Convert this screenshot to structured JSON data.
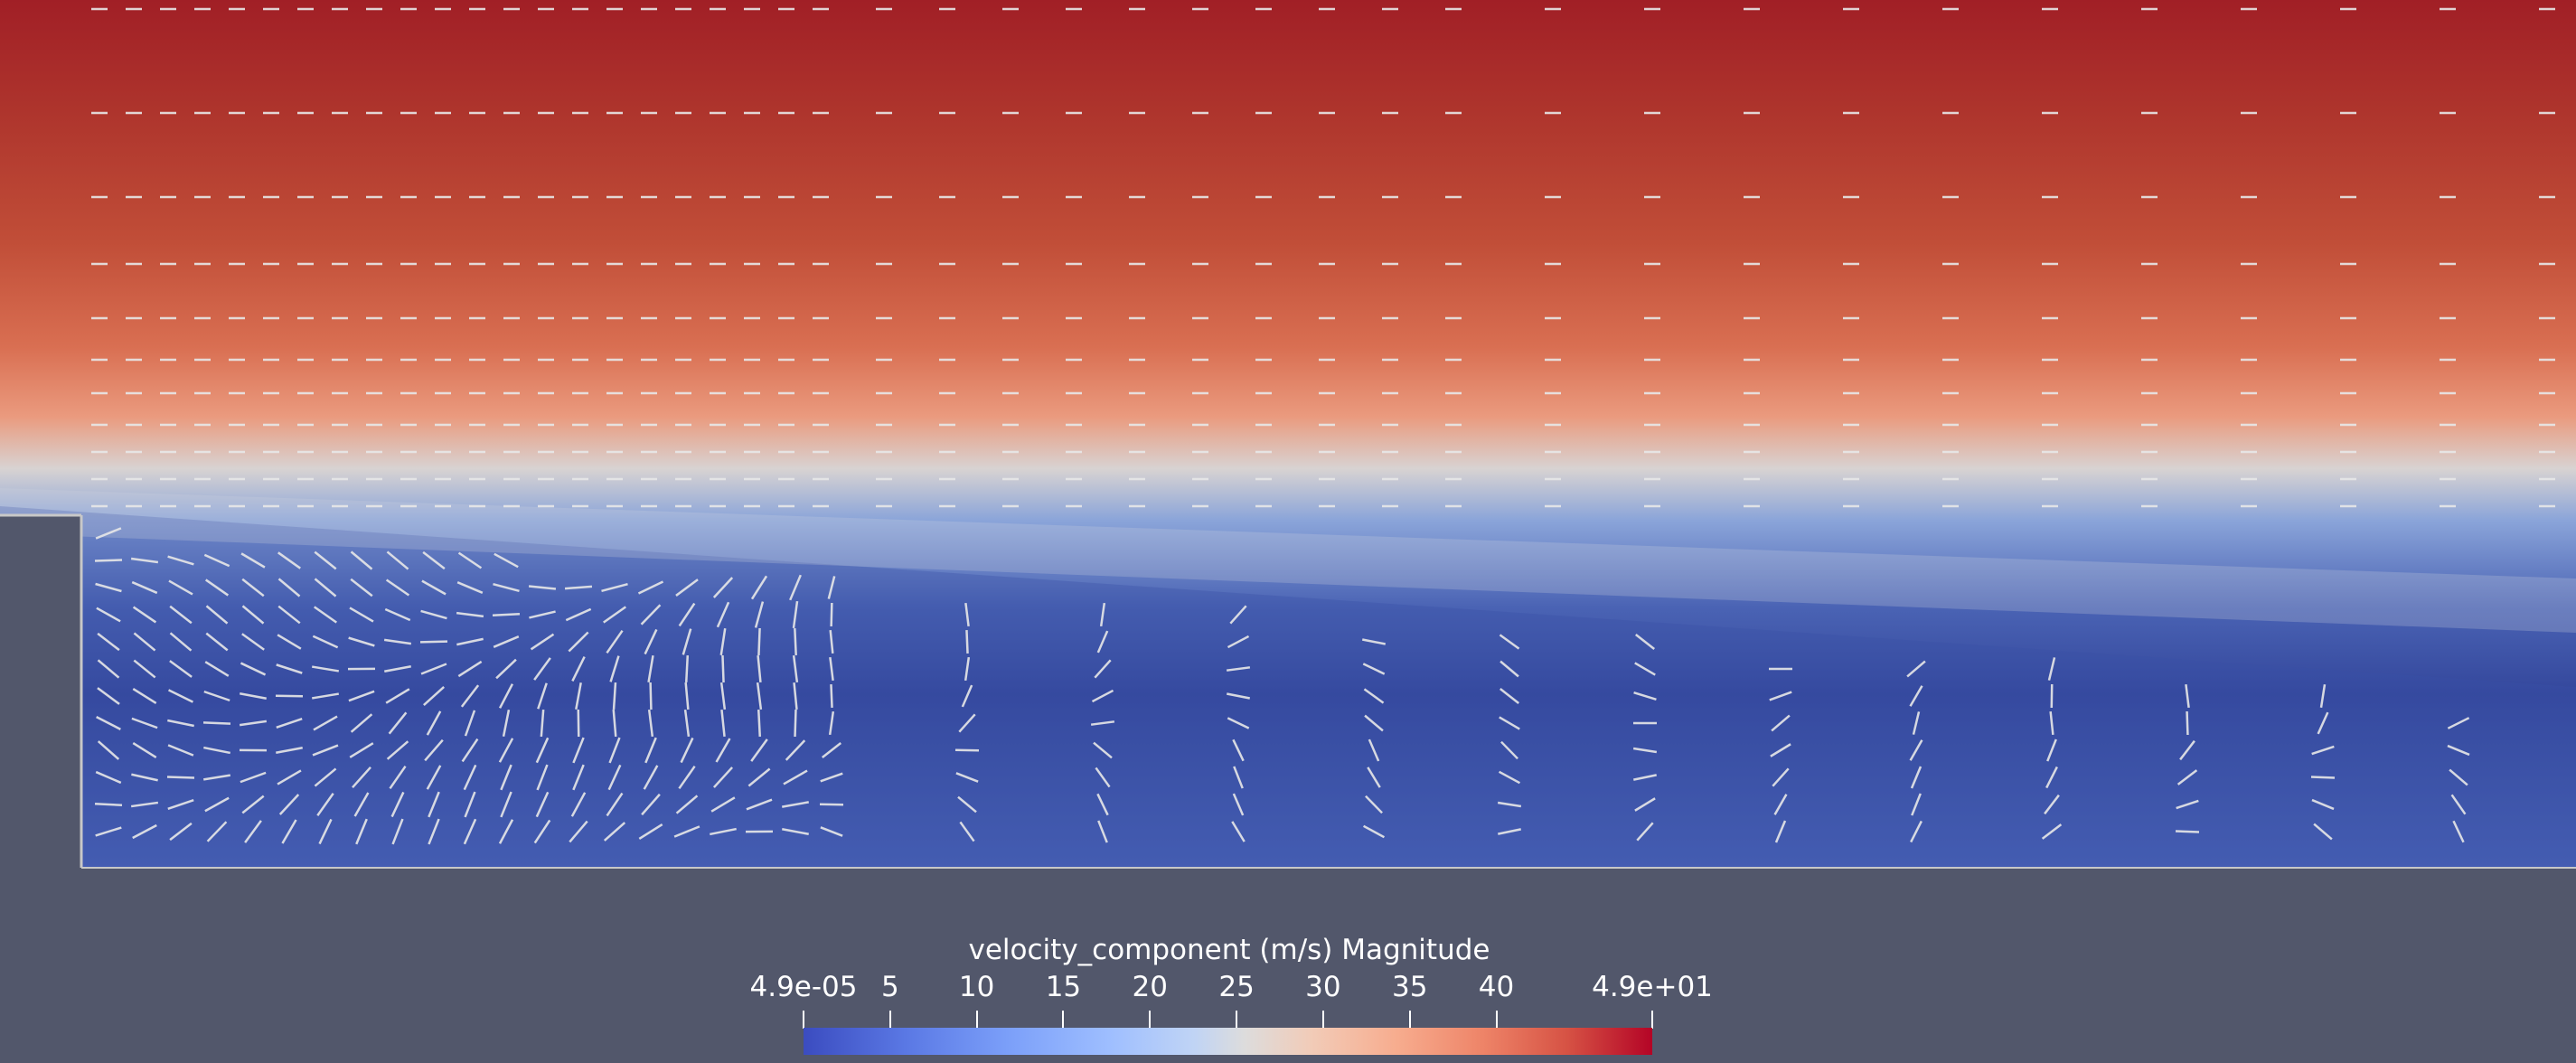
{
  "scalar_bar": {
    "title": "velocity_component (m/s) Magnitude",
    "ticks": [
      {
        "label": "4.9e-05",
        "value": 4.9e-05
      },
      {
        "label": "5",
        "value": 5
      },
      {
        "label": "10",
        "value": 10
      },
      {
        "label": "15",
        "value": 15
      },
      {
        "label": "20",
        "value": 20
      },
      {
        "label": "25",
        "value": 25
      },
      {
        "label": "30",
        "value": 30
      },
      {
        "label": "35",
        "value": 35
      },
      {
        "label": "40",
        "value": 40
      },
      {
        "label": "4.9e+01",
        "value": 49
      }
    ],
    "range": [
      4.9e-05,
      49
    ],
    "colormap": [
      "#3b4cc0",
      "#dddcdc",
      "#b40426"
    ]
  },
  "colors": {
    "background": "#52576b",
    "wall": "#52576b",
    "glyph": "#e8e8e8"
  }
}
